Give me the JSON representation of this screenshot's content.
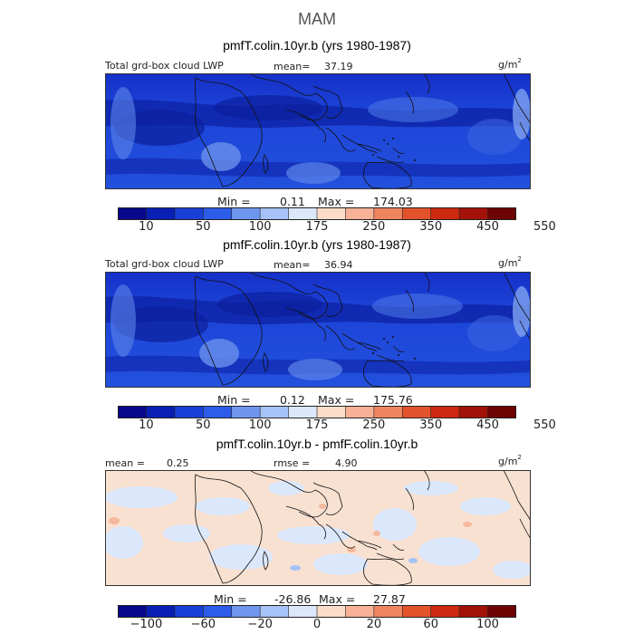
{
  "season": "MAM",
  "chart_data": [
    {
      "type": "heatmap",
      "title": "pmfT.colin.10yr.b (yrs 1980-1987)",
      "left_label": "Total grd-box cloud LWP",
      "mean_label": "mean=",
      "mean": "37.19",
      "units": "g/m",
      "units_sup": "2",
      "min_label": "Min =",
      "min": "0.11",
      "max_label": "Max =",
      "max": "174.03",
      "colorbar_ticks": [
        "10",
        "50",
        "100",
        "175",
        "250",
        "350",
        "450",
        "550"
      ],
      "colorbar_colors": [
        "#08088a",
        "#0a1fb4",
        "#1a3fd6",
        "#2c5ce8",
        "#6f96ee",
        "#a6c2f6",
        "#dbe8fc",
        "#fbdcc8",
        "#f6b196",
        "#ee8560",
        "#e2532c",
        "#cc2910",
        "#a31208",
        "#6e0404"
      ]
    },
    {
      "type": "heatmap",
      "title": "pmfF.colin.10yr.b (yrs 1980-1987)",
      "left_label": "Total grd-box cloud LWP",
      "mean_label": "mean=",
      "mean": "36.94",
      "units": "g/m",
      "units_sup": "2",
      "min_label": "Min =",
      "min": "0.12",
      "max_label": "Max =",
      "max": "175.76",
      "colorbar_ticks": [
        "10",
        "50",
        "100",
        "175",
        "250",
        "350",
        "450",
        "550"
      ],
      "colorbar_colors": [
        "#08088a",
        "#0a1fb4",
        "#1a3fd6",
        "#2c5ce8",
        "#6f96ee",
        "#a6c2f6",
        "#dbe8fc",
        "#fbdcc8",
        "#f6b196",
        "#ee8560",
        "#e2532c",
        "#cc2910",
        "#a31208",
        "#6e0404"
      ]
    },
    {
      "type": "heatmap",
      "title": "pmfT.colin.10yr.b - pmfF.colin.10yr.b",
      "mean_label": "mean =",
      "mean": "0.25",
      "rmse_label": "rmse =",
      "rmse": "4.90",
      "units": "g/m",
      "units_sup": "2",
      "min_label": "Min =",
      "min": "-26.86",
      "max_label": "Max =",
      "max": "27.87",
      "colorbar_ticks": [
        "−100",
        "−60",
        "−20",
        "0",
        "20",
        "60",
        "100"
      ],
      "colorbar_colors": [
        "#08088a",
        "#0a1fb4",
        "#1a3fd6",
        "#2c5ce8",
        "#6f96ee",
        "#a6c2f6",
        "#dbe8fc",
        "#fbdcc8",
        "#f6b196",
        "#ee8560",
        "#e2532c",
        "#cc2910",
        "#a31208",
        "#6e0404"
      ]
    }
  ]
}
